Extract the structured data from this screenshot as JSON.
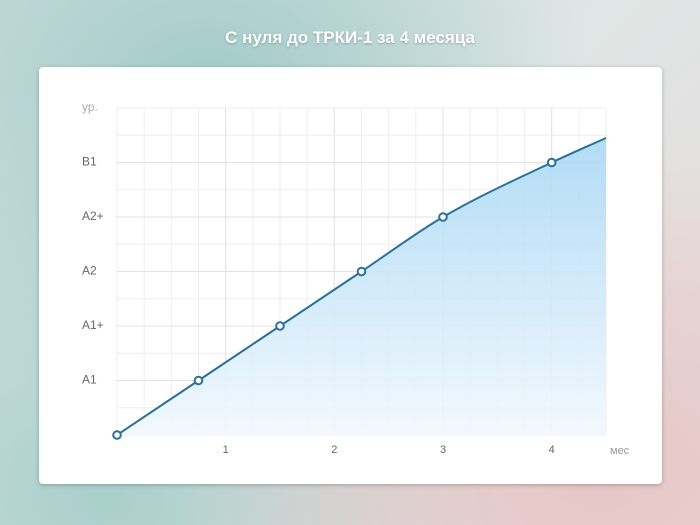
{
  "chart_data": {
    "type": "area",
    "title": "С нуля до ТРКИ-1 за 4 месяца",
    "y_label": "ур.",
    "x_label": "мес",
    "x": [
      0,
      0.75,
      1.5,
      2.25,
      3,
      4,
      4.5
    ],
    "values": [
      0,
      1,
      2,
      3,
      4,
      5,
      5.45
    ],
    "markers": [
      true,
      true,
      true,
      true,
      true,
      true,
      false
    ],
    "color": "#2a7199",
    "fill_top": "#a9d8f5",
    "fill_bottom": "#f1f8fd",
    "xlim": [
      0,
      4.5
    ],
    "xticks": [
      1,
      2,
      3,
      4
    ],
    "ylim": [
      0,
      6
    ],
    "yticks": [
      {
        "value": 1,
        "label": "A1"
      },
      {
        "value": 2,
        "label": "A1+"
      },
      {
        "value": 3,
        "label": "A2"
      },
      {
        "value": 4,
        "label": "A2+"
      },
      {
        "value": 5,
        "label": "B1"
      }
    ],
    "grid": true
  }
}
